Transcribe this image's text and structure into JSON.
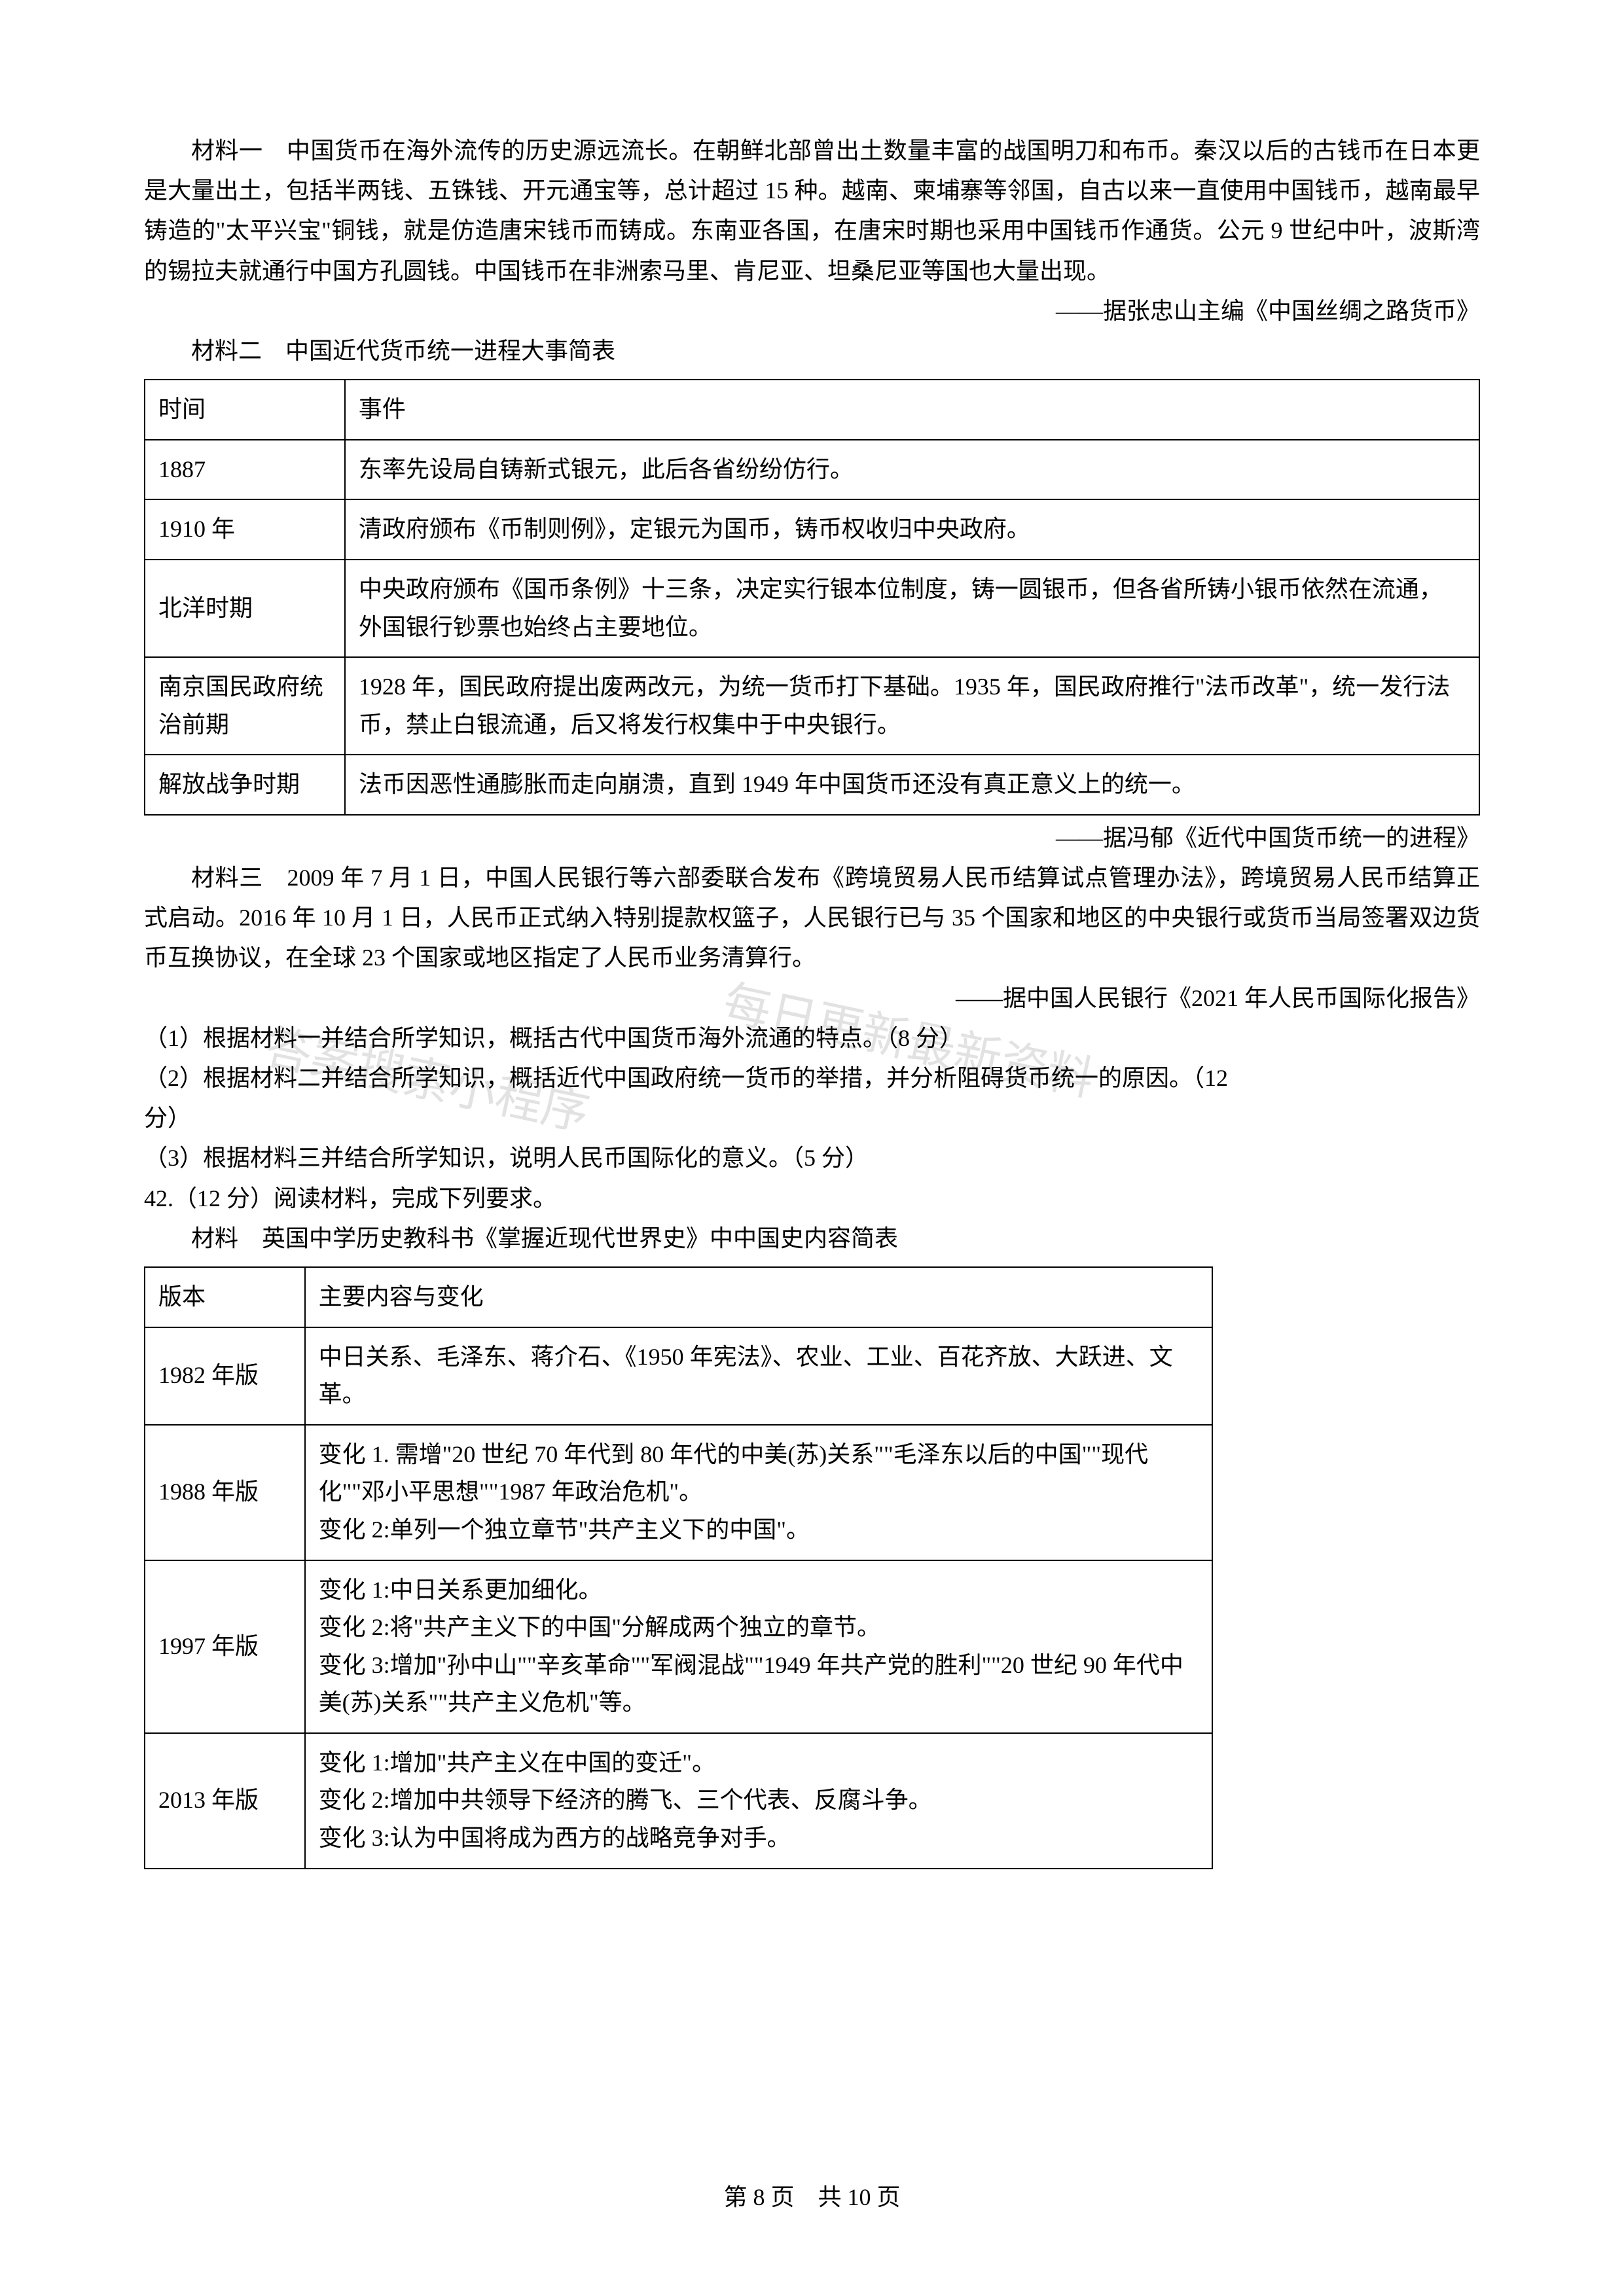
{
  "material1": {
    "text": "材料一　中国货币在海外流传的历史源远流长。在朝鲜北部曾出土数量丰富的战国明刀和布币。秦汉以后的古钱币在日本更是大量出土，包括半两钱、五铢钱、开元通宝等，总计超过 15 种。越南、柬埔寨等邻国，自古以来一直使用中国钱币，越南最早铸造的\"太平兴宝\"铜钱，就是仿造唐宋钱币而铸成。东南亚各国，在唐宋时期也采用中国钱币作通货。公元 9 世纪中叶，波斯湾的锡拉夫就通行中国方孔圆钱。中国钱币在非洲索马里、肯尼亚、坦桑尼亚等国也大量出现。",
    "citation": "——据张忠山主编《中国丝绸之路货币》"
  },
  "material2": {
    "heading": "材料二　中国近代货币统一进程大事简表",
    "headers": {
      "time": "时间",
      "event": "事件"
    },
    "rows": [
      {
        "time": "1887",
        "event": "东率先设局自铸新式银元，此后各省纷纷仿行。"
      },
      {
        "time": "1910 年",
        "event": "清政府颁布《币制则例》，定银元为国币，铸币权收归中央政府。"
      },
      {
        "time": "北洋时期",
        "event": "中央政府颁布《国币条例》十三条，决定实行银本位制度，铸一圆银币，但各省所铸小银币依然在流通，外国银行钞票也始终占主要地位。"
      },
      {
        "time": "南京国民政府统治前期",
        "event": "1928 年，国民政府提出废两改元，为统一货币打下基础。1935 年，国民政府推行\"法币改革\"，统一发行法币，禁止白银流通，后又将发行权集中于中央银行。"
      },
      {
        "time": "解放战争时期",
        "event": "法币因恶性通膨胀而走向崩溃，直到 1949 年中国货币还没有真正意义上的统一。"
      }
    ],
    "citation": "——据冯郁《近代中国货币统一的进程》"
  },
  "material3": {
    "text": "材料三　2009 年 7 月 1 日，中国人民银行等六部委联合发布《跨境贸易人民币结算试点管理办法》，跨境贸易人民币结算正式启动。2016 年 10 月 1 日，人民币正式纳入特别提款权篮子，人民银行已与 35 个国家和地区的中央银行或货币当局签署双边货币互换协议，在全球 23 个国家或地区指定了人民币业务清算行。",
    "citation": "——据中国人民银行《2021 年人民币国际化报告》"
  },
  "questions": {
    "q1": "（1）根据材料一并结合所学知识，概括古代中国货币海外流通的特点。（8 分）",
    "q2a": "（2）根据材料二并结合所学知识，概括近代中国政府统一货币的举措，并分析阻碍货币统一的原因。（12",
    "q2b": "分）",
    "q3": "（3）根据材料三并结合所学知识，说明人民币国际化的意义。（5 分）"
  },
  "q42": {
    "heading": "42.（12 分）阅读材料，完成下列要求。",
    "material_heading": "材料　英国中学历史教科书《掌握近现代世界史》中中国史内容简表",
    "headers": {
      "version": "版本",
      "content": "主要内容与变化"
    },
    "rows": [
      {
        "version": "1982 年版",
        "content": "中日关系、毛泽东、蒋介石、《1950 年宪法》、农业、工业、百花齐放、大跃进、文革。"
      },
      {
        "version": "1988 年版",
        "content": "变化 1. 需增\"20 世纪 70 年代到 80 年代的中美(苏)关系\"\"毛泽东以后的中国\"\"现代化\"\"邓小平思想\"\"1987 年政治危机\"。\n变化 2:单列一个独立章节\"共产主义下的中国\"。"
      },
      {
        "version": "1997 年版",
        "content": "变化 1:中日关系更加细化。\n变化 2:将\"共产主义下的中国\"分解成两个独立的章节。\n变化 3:增加\"孙中山\"\"辛亥革命\"\"军阀混战\"\"1949 年共产党的胜利\"\"20 世纪 90 年代中美(苏)关系\"\"共产主义危机\"等。"
      },
      {
        "version": "2013 年版",
        "content": "变化 1:增加\"共产主义在中国的变迁\"。\n变化 2:增加中共领导下经济的腾飞、三个代表、反腐斗争。\n变化 3:认为中国将成为西方的战略竞争对手。"
      }
    ]
  },
  "watermarks": {
    "w1": "答案搜索小程序",
    "w2": "每日更新最新资料"
  },
  "footer": "第 8 页　共 10 页"
}
